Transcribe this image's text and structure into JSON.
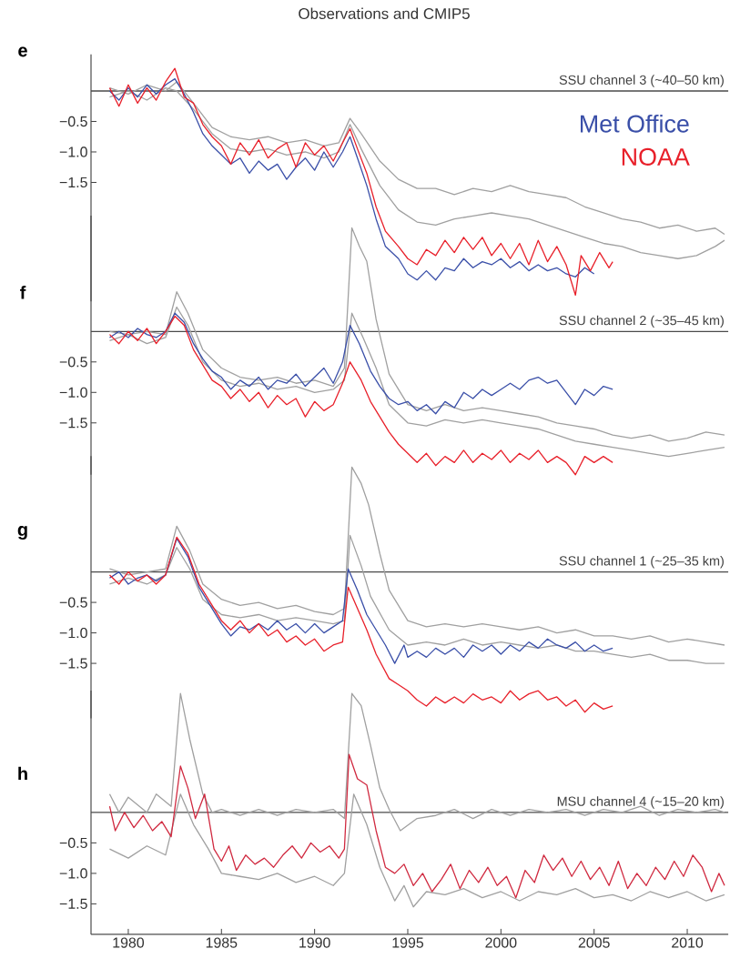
{
  "chart_data": [
    {
      "type": "line",
      "title": "Observations and CMIP5",
      "annotations": [
        "e"
      ],
      "legend": "top right",
      "tick_labels": "y",
      "xlim": [
        1978,
        2012.2
      ],
      "ylim": [
        -3.45,
        0.6
      ],
      "yticks": [
        {
          "value": -0.5,
          "label": "−0.5"
        },
        {
          "value": -1.0,
          "label": "−1.0"
        },
        {
          "value": -1.5,
          "label": "−1.5"
        }
      ],
      "ref_lines": [
        {
          "axis": "y",
          "value": 0,
          "label": "SSU channel 3 (~40–50 km)",
          "color": "#4a4a4a"
        }
      ],
      "series": [
        {
          "color": "#a0a0a0",
          "x": [
            1979,
            1980,
            1981,
            1982,
            1982.6,
            1983.5,
            1984.5,
            1985.5,
            1986.5,
            1987.5,
            1988.5,
            1989.5,
            1990.5,
            1991.3,
            1991.9,
            1992.5,
            1993.5,
            1994.5,
            1995.5,
            1996.5,
            1997.5,
            1998.5,
            1999.5,
            2000.5,
            2001.5,
            2002.5,
            2003.5,
            2004.5,
            2005.5,
            2006.5,
            2007.5,
            2008.5,
            2009.5,
            2010.5,
            2011.5,
            2012
          ],
          "values": [
            0.05,
            -0.05,
            0.1,
            0.0,
            0.15,
            -0.2,
            -0.6,
            -0.75,
            -0.8,
            -0.75,
            -0.85,
            -0.8,
            -0.9,
            -0.85,
            -0.45,
            -0.7,
            -1.15,
            -1.45,
            -1.6,
            -1.6,
            -1.7,
            -1.6,
            -1.65,
            -1.55,
            -1.65,
            -1.7,
            -1.75,
            -1.9,
            -2.0,
            -2.1,
            -2.15,
            -2.25,
            -2.2,
            -2.3,
            -2.25,
            -2.35
          ]
        },
        {
          "color": "#a0a0a0",
          "x": [
            1979,
            1980,
            1981,
            1982,
            1982.6,
            1983.5,
            1984.5,
            1985.5,
            1986.5,
            1987.5,
            1988.5,
            1989.5,
            1990.5,
            1991.3,
            1991.9,
            1992.5,
            1993.5,
            1994.5,
            1995.5,
            1996.5,
            1997.5,
            1998.5,
            1999.5,
            2000.5,
            2001.5,
            2002.5,
            2003.5,
            2004.5,
            2005.5,
            2006.5,
            2007.5,
            2008.5,
            2009.5,
            2010.5,
            2011.5,
            2012
          ],
          "values": [
            -0.1,
            0.0,
            -0.15,
            0.05,
            0.0,
            -0.3,
            -0.7,
            -0.95,
            -1.0,
            -0.95,
            -1.05,
            -1.0,
            -1.1,
            -1.0,
            -0.55,
            -0.95,
            -1.55,
            -1.95,
            -2.15,
            -2.2,
            -2.1,
            -2.05,
            -2.0,
            -2.05,
            -2.1,
            -2.2,
            -2.3,
            -2.4,
            -2.5,
            -2.55,
            -2.65,
            -2.7,
            -2.75,
            -2.7,
            -2.55,
            -2.45
          ]
        },
        {
          "name": "Met Office",
          "color": "#3a4fa8",
          "x": [
            1979,
            1979.5,
            1980,
            1980.5,
            1981,
            1981.5,
            1982,
            1982.5,
            1983,
            1983.5,
            1984,
            1984.5,
            1985,
            1985.5,
            1986,
            1986.5,
            1987,
            1987.5,
            1988,
            1988.5,
            1989,
            1989.5,
            1990,
            1990.5,
            1991,
            1991.5,
            1991.9,
            1992.3,
            1992.8,
            1993.3,
            1993.8,
            1994.5,
            1995,
            1995.5,
            1996,
            1996.5,
            1997,
            1997.5,
            1998,
            1998.5,
            1999,
            1999.5,
            2000,
            2000.5,
            2001,
            2001.5,
            2002,
            2002.5,
            2003,
            2003.5,
            2004,
            2004.5,
            2005
          ],
          "values": [
            0.0,
            -0.15,
            0.05,
            -0.1,
            0.1,
            -0.05,
            0.1,
            0.2,
            -0.05,
            -0.35,
            -0.7,
            -0.9,
            -1.05,
            -1.2,
            -1.1,
            -1.35,
            -1.15,
            -1.3,
            -1.2,
            -1.45,
            -1.25,
            -1.1,
            -1.3,
            -1.0,
            -1.25,
            -1.0,
            -0.75,
            -1.1,
            -1.55,
            -2.1,
            -2.55,
            -2.75,
            -3.0,
            -3.1,
            -2.95,
            -3.1,
            -2.9,
            -2.95,
            -2.75,
            -2.9,
            -2.8,
            -2.85,
            -2.75,
            -2.9,
            -2.8,
            -2.95,
            -2.85,
            -2.95,
            -2.9,
            -3.0,
            -3.05,
            -2.9,
            -3.0
          ]
        },
        {
          "name": "NOAA",
          "color": "#e8202a",
          "x": [
            1979,
            1979.5,
            1980,
            1980.5,
            1981,
            1981.5,
            1982,
            1982.5,
            1983,
            1983.5,
            1984,
            1984.5,
            1985,
            1985.5,
            1986,
            1986.5,
            1987,
            1987.5,
            1988,
            1988.5,
            1989,
            1989.5,
            1990,
            1990.5,
            1991,
            1991.5,
            1991.9,
            1992.3,
            1992.8,
            1993.3,
            1993.8,
            1994.5,
            1995,
            1995.5,
            1996,
            1996.5,
            1997,
            1997.5,
            1998,
            1998.5,
            1999,
            1999.5,
            2000,
            2000.5,
            2001,
            2001.5,
            2002,
            2002.5,
            2003,
            2003.5,
            2004,
            2004.3,
            2004.8,
            2005.3,
            2005.8,
            2006
          ],
          "values": [
            0.05,
            -0.25,
            0.1,
            -0.2,
            0.05,
            -0.15,
            0.15,
            0.37,
            -0.1,
            -0.2,
            -0.55,
            -0.75,
            -0.9,
            -1.2,
            -0.85,
            -1.05,
            -0.8,
            -1.1,
            -0.95,
            -0.85,
            -1.25,
            -0.85,
            -1.05,
            -0.9,
            -1.15,
            -0.85,
            -0.62,
            -0.95,
            -1.35,
            -1.9,
            -2.3,
            -2.55,
            -2.75,
            -2.85,
            -2.6,
            -2.7,
            -2.45,
            -2.65,
            -2.4,
            -2.6,
            -2.4,
            -2.7,
            -2.5,
            -2.75,
            -2.5,
            -2.85,
            -2.45,
            -2.8,
            -2.55,
            -2.85,
            -3.35,
            -2.7,
            -2.95,
            -2.65,
            -2.9,
            -2.8
          ]
        }
      ]
    },
    {
      "type": "line",
      "annotations": [
        "f"
      ],
      "tick_labels": "y",
      "xlim": [
        1978,
        2012.2
      ],
      "ylim": [
        -2.35,
        1.9
      ],
      "yticks": [
        {
          "value": -0.5,
          "label": "−0.5"
        },
        {
          "value": -1.0,
          "label": "−1.0"
        },
        {
          "value": -1.5,
          "label": "−1.5"
        }
      ],
      "ref_lines": [
        {
          "axis": "y",
          "value": 0,
          "label": "SSU channel 2 (~35–45 km)",
          "color": "#4a4a4a"
        }
      ],
      "series": [
        {
          "color": "#a0a0a0",
          "x": [
            1979,
            1980,
            1981,
            1982,
            1982.6,
            1983.2,
            1984,
            1985,
            1986,
            1987,
            1988,
            1989,
            1990,
            1991,
            1991.6,
            1992,
            1992.4,
            1992.8,
            1993.3,
            1994,
            1995,
            1996,
            1997,
            1998,
            1999,
            2000,
            2001,
            2002,
            2003,
            2004,
            2005,
            2006,
            2007,
            2008,
            2009,
            2010,
            2011,
            2012
          ],
          "values": [
            0.0,
            -0.05,
            0.0,
            -0.05,
            0.65,
            0.3,
            -0.3,
            -0.6,
            -0.75,
            -0.8,
            -0.75,
            -0.85,
            -0.8,
            -0.9,
            -0.6,
            1.7,
            1.4,
            1.15,
            0.2,
            -0.7,
            -1.2,
            -1.3,
            -1.2,
            -1.3,
            -1.25,
            -1.3,
            -1.35,
            -1.4,
            -1.5,
            -1.55,
            -1.6,
            -1.7,
            -1.75,
            -1.7,
            -1.8,
            -1.75,
            -1.65,
            -1.7
          ]
        },
        {
          "color": "#a0a0a0",
          "x": [
            1979,
            1980,
            1981,
            1982,
            1982.6,
            1983.2,
            1984,
            1985,
            1986,
            1987,
            1988,
            1989,
            1990,
            1991,
            1991.6,
            1992,
            1992.6,
            1993.3,
            1994,
            1995,
            1996,
            1997,
            1998,
            1999,
            2000,
            2001,
            2002,
            2003,
            2004,
            2005,
            2006,
            2007,
            2008,
            2009,
            2010,
            2011,
            2012
          ],
          "values": [
            -0.15,
            -0.05,
            -0.2,
            -0.1,
            0.4,
            0.1,
            -0.5,
            -0.8,
            -0.9,
            -0.85,
            -0.95,
            -0.9,
            -1.0,
            -0.95,
            -0.8,
            0.3,
            -0.1,
            -0.6,
            -1.2,
            -1.5,
            -1.55,
            -1.45,
            -1.5,
            -1.45,
            -1.5,
            -1.55,
            -1.6,
            -1.7,
            -1.8,
            -1.85,
            -1.9,
            -1.95,
            -2.0,
            -2.05,
            -2.0,
            -1.95,
            -1.9
          ]
        },
        {
          "color": "#3a4fa8",
          "x": [
            1979,
            1979.5,
            1980,
            1980.5,
            1981,
            1981.5,
            1982,
            1982.5,
            1983,
            1983.5,
            1984,
            1984.5,
            1985,
            1985.5,
            1986,
            1986.5,
            1987,
            1987.5,
            1988,
            1988.5,
            1989,
            1989.5,
            1990,
            1990.5,
            1991,
            1991.5,
            1991.9,
            1992.4,
            1993,
            1993.5,
            1994,
            1994.5,
            1995,
            1995.5,
            1996,
            1996.5,
            1997,
            1997.5,
            1998,
            1998.5,
            1999,
            1999.5,
            2000,
            2000.5,
            2001,
            2001.5,
            2002,
            2002.5,
            2003,
            2003.5,
            2004,
            2004.5,
            2005,
            2005.5,
            2006
          ],
          "values": [
            -0.1,
            0.0,
            -0.1,
            0.05,
            -0.05,
            -0.1,
            0.0,
            0.3,
            0.15,
            -0.2,
            -0.45,
            -0.65,
            -0.75,
            -0.95,
            -0.8,
            -0.9,
            -0.75,
            -0.95,
            -0.8,
            -0.85,
            -0.7,
            -0.9,
            -0.75,
            -0.6,
            -0.85,
            -0.5,
            0.1,
            -0.2,
            -0.65,
            -0.9,
            -1.1,
            -1.2,
            -1.15,
            -1.3,
            -1.2,
            -1.35,
            -1.15,
            -1.25,
            -1.0,
            -1.1,
            -0.95,
            -1.05,
            -0.95,
            -0.85,
            -0.95,
            -0.8,
            -0.75,
            -0.85,
            -0.8,
            -1.0,
            -1.2,
            -0.95,
            -1.05,
            -0.9,
            -0.95
          ]
        },
        {
          "color": "#e8202a",
          "x": [
            1979,
            1979.5,
            1980,
            1980.5,
            1981,
            1981.5,
            1982,
            1982.5,
            1983,
            1983.5,
            1984,
            1984.5,
            1985,
            1985.5,
            1986,
            1986.5,
            1987,
            1987.5,
            1988,
            1988.5,
            1989,
            1989.5,
            1990,
            1990.5,
            1991,
            1991.5,
            1991.9,
            1992.5,
            1993,
            1993.5,
            1994,
            1994.5,
            1995,
            1995.5,
            1996,
            1996.5,
            1997,
            1997.5,
            1998,
            1998.5,
            1999,
            1999.5,
            2000,
            2000.5,
            2001,
            2001.5,
            2002,
            2002.5,
            2003,
            2003.5,
            2004,
            2004.5,
            2005,
            2005.5,
            2006
          ],
          "values": [
            -0.05,
            -0.2,
            0.0,
            -0.15,
            0.05,
            -0.2,
            0.0,
            0.25,
            0.1,
            -0.3,
            -0.55,
            -0.8,
            -0.9,
            -1.1,
            -0.95,
            -1.15,
            -1.0,
            -1.25,
            -1.05,
            -1.2,
            -1.1,
            -1.4,
            -1.15,
            -1.3,
            -1.2,
            -0.85,
            -0.5,
            -0.8,
            -1.15,
            -1.4,
            -1.65,
            -1.85,
            -2.0,
            -2.15,
            -2.0,
            -2.2,
            -2.05,
            -2.15,
            -1.95,
            -2.15,
            -2.0,
            -2.1,
            -1.95,
            -2.15,
            -2.0,
            -2.1,
            -1.95,
            -2.15,
            -2.05,
            -2.15,
            -2.35,
            -2.05,
            -2.15,
            -2.05,
            -2.15
          ]
        }
      ]
    },
    {
      "type": "line",
      "annotations": [
        "g"
      ],
      "tick_labels": "y",
      "xlim": [
        1978,
        2012.2
      ],
      "ylim": [
        -2.4,
        1.9
      ],
      "yticks": [
        {
          "value": -0.5,
          "label": "−0.5"
        },
        {
          "value": -1.0,
          "label": "−1.0"
        },
        {
          "value": -1.5,
          "label": "−1.5"
        }
      ],
      "ref_lines": [
        {
          "axis": "y",
          "value": 0,
          "label": "SSU channel 1 (~25–35 km)",
          "color": "#4a4a4a"
        }
      ],
      "series": [
        {
          "color": "#a0a0a0",
          "x": [
            1979,
            1980,
            1981,
            1982,
            1982.6,
            1983.3,
            1984,
            1985,
            1986,
            1987,
            1988,
            1989,
            1990,
            1991,
            1991.6,
            1992,
            1992.5,
            1992.9,
            1993.5,
            1994,
            1995,
            1996,
            1997,
            1998,
            1999,
            2000,
            2001,
            2002,
            2003,
            2004,
            2005,
            2006,
            2007,
            2008,
            2009,
            2010,
            2011,
            2012
          ],
          "values": [
            0.05,
            -0.05,
            0.0,
            0.05,
            0.75,
            0.35,
            -0.2,
            -0.45,
            -0.55,
            -0.5,
            -0.6,
            -0.55,
            -0.65,
            -0.7,
            -0.6,
            1.72,
            1.45,
            1.1,
            0.3,
            -0.3,
            -0.8,
            -0.9,
            -0.85,
            -0.9,
            -0.85,
            -0.9,
            -0.95,
            -0.9,
            -1.0,
            -0.95,
            -1.05,
            -1.05,
            -1.1,
            -1.05,
            -1.15,
            -1.1,
            -1.15,
            -1.2
          ]
        },
        {
          "color": "#a0a0a0",
          "x": [
            1979,
            1980,
            1981,
            1982,
            1982.6,
            1983.3,
            1984,
            1985,
            1986,
            1987,
            1988,
            1989,
            1990,
            1991,
            1991.6,
            1991.9,
            1992.5,
            1993,
            1994,
            1995,
            1996,
            1997,
            1998,
            1999,
            2000,
            2001,
            2002,
            2003,
            2004,
            2005,
            2006,
            2007,
            2008,
            2009,
            2010,
            2011,
            2012
          ],
          "values": [
            -0.2,
            -0.1,
            -0.2,
            -0.05,
            0.4,
            0.05,
            -0.45,
            -0.7,
            -0.75,
            -0.7,
            -0.8,
            -0.75,
            -0.8,
            -0.85,
            -0.8,
            0.6,
            0.1,
            -0.4,
            -0.95,
            -1.2,
            -1.15,
            -1.2,
            -1.1,
            -1.2,
            -1.15,
            -1.2,
            -1.25,
            -1.2,
            -1.3,
            -1.3,
            -1.35,
            -1.4,
            -1.35,
            -1.45,
            -1.45,
            -1.5,
            -1.5
          ]
        },
        {
          "color": "#3a4fa8",
          "x": [
            1979,
            1979.5,
            1980,
            1980.5,
            1981,
            1981.5,
            1982,
            1982.6,
            1983.2,
            1983.8,
            1984.5,
            1985,
            1985.5,
            1986,
            1986.5,
            1987,
            1987.5,
            1988,
            1988.5,
            1989,
            1989.5,
            1990,
            1990.5,
            1991,
            1991.5,
            1991.8,
            1992.3,
            1992.8,
            1993.3,
            1993.8,
            1994.3,
            1994.8,
            1995,
            1995.5,
            1996,
            1996.5,
            1997,
            1997.5,
            1998,
            1998.5,
            1999,
            1999.5,
            2000,
            2000.5,
            2001,
            2001.5,
            2002,
            2002.5,
            2003,
            2003.5,
            2004,
            2004.5,
            2005,
            2005.5,
            2006
          ],
          "values": [
            -0.1,
            0.0,
            -0.2,
            -0.1,
            -0.05,
            -0.15,
            -0.05,
            0.55,
            0.25,
            -0.25,
            -0.6,
            -0.85,
            -1.05,
            -0.9,
            -0.95,
            -0.85,
            -0.95,
            -0.8,
            -0.95,
            -0.85,
            -1.0,
            -0.85,
            -1.0,
            -0.9,
            -0.8,
            0.05,
            -0.3,
            -0.7,
            -0.95,
            -1.2,
            -1.5,
            -1.2,
            -1.4,
            -1.3,
            -1.4,
            -1.25,
            -1.35,
            -1.25,
            -1.4,
            -1.2,
            -1.3,
            -1.2,
            -1.35,
            -1.2,
            -1.3,
            -1.15,
            -1.25,
            -1.1,
            -1.2,
            -1.25,
            -1.15,
            -1.3,
            -1.2,
            -1.3,
            -1.25
          ]
        },
        {
          "color": "#e8202a",
          "x": [
            1979,
            1979.5,
            1980,
            1980.5,
            1981,
            1981.5,
            1982,
            1982.6,
            1983.2,
            1983.8,
            1984.5,
            1985,
            1985.5,
            1986,
            1986.5,
            1987,
            1987.5,
            1988,
            1988.5,
            1989,
            1989.5,
            1990,
            1990.5,
            1991,
            1991.5,
            1991.8,
            1992.3,
            1992.8,
            1993.3,
            1994,
            1994.5,
            1995,
            1995.5,
            1996,
            1996.5,
            1997,
            1997.5,
            1998,
            1998.5,
            1999,
            1999.5,
            2000,
            2000.5,
            2001,
            2001.5,
            2002,
            2002.5,
            2003,
            2003.5,
            2004,
            2004.5,
            2005,
            2005.5,
            2006
          ],
          "values": [
            -0.05,
            -0.2,
            0.0,
            -0.15,
            -0.05,
            -0.2,
            -0.05,
            0.57,
            0.3,
            -0.2,
            -0.55,
            -0.8,
            -0.95,
            -0.8,
            -1.0,
            -0.85,
            -1.05,
            -0.95,
            -1.15,
            -1.05,
            -1.2,
            -1.1,
            -1.3,
            -1.2,
            -1.15,
            -0.25,
            -0.6,
            -0.95,
            -1.35,
            -1.75,
            -1.85,
            -1.95,
            -2.1,
            -2.2,
            -2.05,
            -2.15,
            -2.05,
            -2.15,
            -2.0,
            -2.1,
            -2.05,
            -2.15,
            -1.95,
            -2.1,
            -2.0,
            -1.95,
            -2.1,
            -2.05,
            -2.2,
            -2.1,
            -2.3,
            -2.15,
            -2.25,
            -2.2
          ]
        }
      ]
    },
    {
      "type": "line",
      "annotations": [
        "h"
      ],
      "xlim": [
        1978,
        2012.2
      ],
      "ylim": [
        -2.0,
        2.0
      ],
      "xticks": [
        1980,
        1985,
        1990,
        1995,
        2000,
        2005,
        2010
      ],
      "yticks": [
        {
          "value": -0.5,
          "label": "−0.5"
        },
        {
          "value": -1.0,
          "label": "−1.0"
        },
        {
          "value": -1.5,
          "label": "−1.5"
        }
      ],
      "ref_lines": [
        {
          "axis": "y",
          "value": 0,
          "label": "MSU channel 4 (~15–20 km)",
          "color": "#4a4a4a"
        }
      ],
      "series": [
        {
          "color": "#a0a0a0",
          "x": [
            1979,
            1979.5,
            1980,
            1981,
            1981.5,
            1982.3,
            1982.8,
            1983.3,
            1984,
            1984.5,
            1985,
            1986,
            1987,
            1988,
            1989,
            1990,
            1991,
            1991.6,
            1992,
            1992.5,
            1993,
            1993.5,
            1994,
            1994.6,
            1995.5,
            1996.5,
            1997.5,
            1998.5,
            1999.5,
            2000.5,
            2001.5,
            2002.5,
            2003.5,
            2004.5,
            2005.5,
            2006.5,
            2007.5,
            2008.5,
            2009.5,
            2010.5,
            2011.5,
            2012
          ],
          "values": [
            0.3,
            0.0,
            0.25,
            0.0,
            0.3,
            0.1,
            1.95,
            1.2,
            0.3,
            0.0,
            0.05,
            -0.05,
            0.05,
            -0.05,
            0.05,
            0.0,
            0.05,
            -0.1,
            1.95,
            1.75,
            1.1,
            0.4,
            0.05,
            -0.3,
            -0.1,
            -0.05,
            0.05,
            -0.1,
            0.05,
            -0.05,
            0.05,
            0.0,
            0.05,
            -0.05,
            0.05,
            0.0,
            0.1,
            -0.05,
            0.05,
            0.0,
            0.05,
            0.0
          ]
        },
        {
          "color": "#a0a0a0",
          "x": [
            1979,
            1980,
            1981,
            1982,
            1982.8,
            1983.5,
            1984.3,
            1985,
            1986,
            1987,
            1988,
            1989,
            1990,
            1991,
            1991.6,
            1992.1,
            1992.8,
            1993.5,
            1994.3,
            1994.8,
            1995.3,
            1996,
            1997,
            1998,
            1999,
            2000,
            2001,
            2002,
            2003,
            2004,
            2005,
            2006,
            2007,
            2008,
            2009,
            2010,
            2011,
            2012
          ],
          "values": [
            -0.6,
            -0.75,
            -0.55,
            -0.7,
            0.3,
            -0.2,
            -0.6,
            -1.0,
            -1.05,
            -1.1,
            -1.0,
            -1.15,
            -1.05,
            -1.2,
            -1.0,
            0.3,
            -0.2,
            -0.9,
            -1.45,
            -1.2,
            -1.55,
            -1.3,
            -1.35,
            -1.25,
            -1.4,
            -1.3,
            -1.45,
            -1.3,
            -1.35,
            -1.25,
            -1.4,
            -1.35,
            -1.45,
            -1.3,
            -1.4,
            -1.3,
            -1.45,
            -1.35
          ]
        },
        {
          "color": "#d02a40",
          "x": [
            1979,
            1979.3,
            1979.8,
            1980.3,
            1980.8,
            1981.3,
            1981.8,
            1982.3,
            1982.8,
            1983.2,
            1983.6,
            1984.1,
            1984.6,
            1985,
            1985.4,
            1985.8,
            1986.3,
            1986.8,
            1987.3,
            1987.8,
            1988.3,
            1988.8,
            1989.3,
            1989.8,
            1990.3,
            1990.8,
            1991.3,
            1991.6,
            1991.85,
            1992.3,
            1992.8,
            1993.3,
            1993.8,
            1994.3,
            1994.8,
            1995.3,
            1995.8,
            1996.3,
            1996.8,
            1997.3,
            1997.8,
            1998.3,
            1998.8,
            1999.3,
            1999.8,
            2000.3,
            2000.8,
            2001.3,
            2001.8,
            2002.3,
            2002.8,
            2003.3,
            2003.8,
            2004.3,
            2004.8,
            2005.3,
            2005.8,
            2006.3,
            2006.8,
            2007.3,
            2007.8,
            2008.3,
            2008.8,
            2009.3,
            2009.8,
            2010.3,
            2010.8,
            2011.3,
            2011.7,
            2012
          ],
          "values": [
            0.1,
            -0.3,
            0.0,
            -0.25,
            -0.05,
            -0.3,
            -0.15,
            -0.4,
            0.76,
            0.4,
            -0.1,
            0.3,
            -0.6,
            -0.8,
            -0.55,
            -0.95,
            -0.7,
            -0.85,
            -0.75,
            -0.9,
            -0.7,
            -0.55,
            -0.75,
            -0.5,
            -0.65,
            -0.55,
            -0.75,
            -0.6,
            0.95,
            0.55,
            0.45,
            -0.3,
            -0.9,
            -1.0,
            -0.85,
            -1.2,
            -1.0,
            -1.3,
            -1.1,
            -0.85,
            -1.25,
            -0.95,
            -1.15,
            -0.9,
            -1.2,
            -1.05,
            -1.4,
            -0.95,
            -1.15,
            -0.7,
            -0.95,
            -0.75,
            -1.05,
            -0.8,
            -1.1,
            -0.9,
            -1.2,
            -0.8,
            -1.25,
            -1.0,
            -1.2,
            -0.9,
            -1.1,
            -0.8,
            -1.05,
            -0.7,
            -0.9,
            -1.3,
            -1.0,
            -1.2
          ]
        }
      ]
    }
  ]
}
